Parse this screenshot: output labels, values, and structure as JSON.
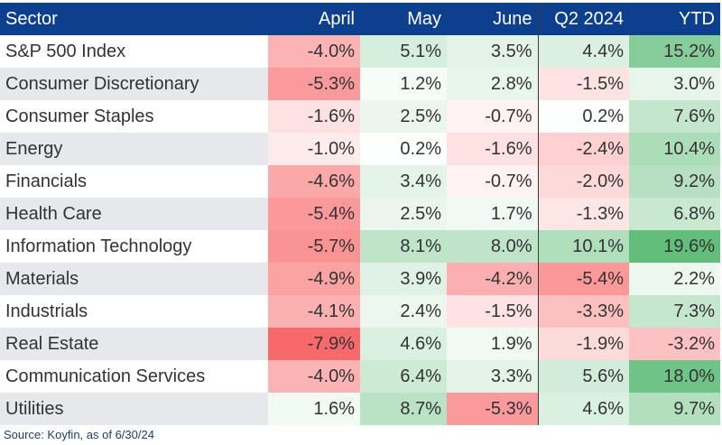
{
  "chart_data": {
    "type": "table",
    "columns": [
      "Sector",
      "April",
      "May",
      "June",
      "Q2 2024",
      "YTD"
    ],
    "rows": [
      {
        "sector": "S&P 500 Index",
        "values": [
          -4.0,
          5.1,
          3.5,
          4.4,
          15.2
        ],
        "labels": [
          "-4.0%",
          "5.1%",
          "3.5%",
          "4.4%",
          "15.2%"
        ]
      },
      {
        "sector": "Consumer Discretionary",
        "values": [
          -5.3,
          1.2,
          2.8,
          -1.5,
          3.0
        ],
        "labels": [
          "-5.3%",
          "1.2%",
          "2.8%",
          "-1.5%",
          "3.0%"
        ]
      },
      {
        "sector": "Consumer Staples",
        "values": [
          -1.6,
          2.5,
          -0.7,
          0.2,
          7.6
        ],
        "labels": [
          "-1.6%",
          "2.5%",
          "-0.7%",
          "0.2%",
          "7.6%"
        ]
      },
      {
        "sector": "Energy",
        "values": [
          -1.0,
          0.2,
          -1.6,
          -2.4,
          10.4
        ],
        "labels": [
          "-1.0%",
          "0.2%",
          "-1.6%",
          "-2.4%",
          "10.4%"
        ]
      },
      {
        "sector": "Financials",
        "values": [
          -4.6,
          3.4,
          -0.7,
          -2.0,
          9.2
        ],
        "labels": [
          "-4.6%",
          "3.4%",
          "-0.7%",
          "-2.0%",
          "9.2%"
        ]
      },
      {
        "sector": "Health Care",
        "values": [
          -5.4,
          2.5,
          1.7,
          -1.3,
          6.8
        ],
        "labels": [
          "-5.4%",
          "2.5%",
          "1.7%",
          "-1.3%",
          "6.8%"
        ]
      },
      {
        "sector": "Information Technology",
        "values": [
          -5.7,
          8.1,
          8.0,
          10.1,
          19.6
        ],
        "labels": [
          "-5.7%",
          "8.1%",
          "8.0%",
          "10.1%",
          "19.6%"
        ]
      },
      {
        "sector": "Materials",
        "values": [
          -4.9,
          3.9,
          -4.2,
          -5.4,
          2.2
        ],
        "labels": [
          "-4.9%",
          "3.9%",
          "-4.2%",
          "-5.4%",
          "2.2%"
        ]
      },
      {
        "sector": "Industrials",
        "values": [
          -4.1,
          2.4,
          -1.5,
          -3.3,
          7.3
        ],
        "labels": [
          "-4.1%",
          "2.4%",
          "-1.5%",
          "-3.3%",
          "7.3%"
        ]
      },
      {
        "sector": "Real Estate",
        "values": [
          -7.9,
          4.6,
          1.9,
          -1.9,
          -3.2
        ],
        "labels": [
          "-7.9%",
          "4.6%",
          "1.9%",
          "-1.9%",
          "-3.2%"
        ]
      },
      {
        "sector": "Communication Services",
        "values": [
          -4.0,
          6.4,
          3.3,
          5.6,
          18.0
        ],
        "labels": [
          "-4.0%",
          "6.4%",
          "3.3%",
          "5.6%",
          "18.0%"
        ]
      },
      {
        "sector": "Utilities",
        "values": [
          1.6,
          8.7,
          -5.3,
          4.6,
          9.7
        ],
        "labels": [
          "1.6%",
          "8.7%",
          "-5.3%",
          "4.6%",
          "9.7%"
        ]
      }
    ],
    "color_scale": {
      "negative": "#f8696b",
      "neutral": "#ffffff",
      "positive": "#63be7b"
    }
  },
  "header_color": "#0d3f8f",
  "source": "Source: Koyfin, as of 6/30/24"
}
